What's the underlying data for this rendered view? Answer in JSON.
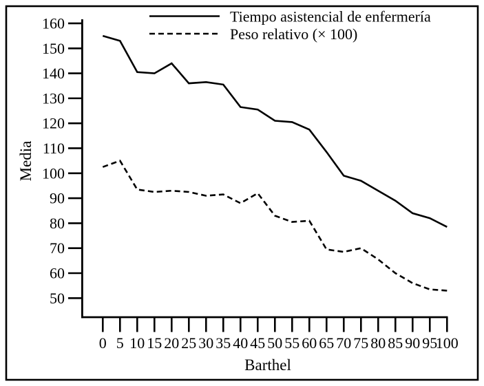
{
  "figure": {
    "background_color": "#ffffff",
    "frame_color": "#000000",
    "line_color": "#000000"
  },
  "chart_data": {
    "type": "line",
    "title": "",
    "xlabel": "Barthel",
    "ylabel": "Media",
    "grid": false,
    "legend_position": "top-inside",
    "x_ticks": [
      0,
      5,
      10,
      15,
      20,
      25,
      30,
      35,
      40,
      45,
      50,
      55,
      60,
      65,
      70,
      75,
      80,
      85,
      90,
      95,
      100
    ],
    "y_ticks": [
      50,
      60,
      70,
      80,
      90,
      100,
      110,
      120,
      130,
      140,
      150,
      160
    ],
    "xlim": [
      0,
      100
    ],
    "ylim": [
      42,
      162
    ],
    "series": [
      {
        "name": "Tiempo asistencial de enfermería",
        "line_style": "solid",
        "values": [
          155,
          153,
          140.5,
          140,
          144,
          136,
          136.5,
          135.5,
          126.5,
          125.5,
          121,
          120.5,
          117.5,
          108.5,
          99,
          97,
          93,
          89,
          84,
          82,
          78.5
        ]
      },
      {
        "name": "Peso relativo (× 100)",
        "line_style": "dashed",
        "values": [
          102.5,
          105,
          93.5,
          92.5,
          93,
          92.5,
          91,
          91.5,
          88,
          92,
          83,
          80.5,
          81,
          69.5,
          68.5,
          70,
          65.5,
          60,
          56,
          53.5,
          53
        ]
      }
    ]
  }
}
